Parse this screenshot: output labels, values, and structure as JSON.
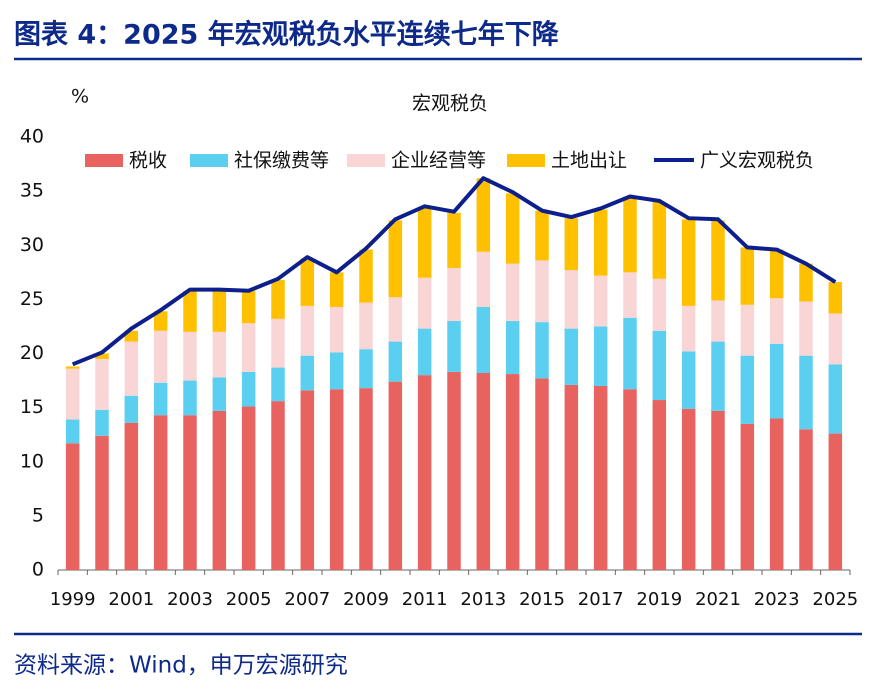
{
  "title": "图表 4：2025 年宏观税负水平连续七年下降",
  "source": "资料来源：Wind，申万宏源研究",
  "chart_data": {
    "type": "bar",
    "stacked": true,
    "subtitle": "宏观税负",
    "y_unit": "%",
    "categories": [
      "1999",
      null,
      "2001",
      null,
      "2003",
      null,
      "2005",
      null,
      "2007",
      null,
      "2009",
      null,
      "2011",
      null,
      "2013",
      null,
      "2015",
      null,
      "2017",
      null,
      "2019",
      null,
      "2021",
      null,
      "2023",
      null,
      "2025"
    ],
    "series": [
      {
        "name": "税收",
        "type": "bar",
        "color": "#e8625f",
        "values": [
          11.7,
          12.4,
          13.6,
          14.3,
          14.3,
          14.7,
          15.1,
          15.6,
          16.6,
          16.7,
          16.8,
          17.4,
          18.0,
          18.3,
          18.2,
          18.1,
          17.7,
          17.1,
          17.0,
          16.7,
          15.7,
          14.9,
          14.7,
          13.5,
          14.0,
          13.0,
          12.6
        ]
      },
      {
        "name": "社保缴费等",
        "type": "bar",
        "color": "#5bcff0",
        "values": [
          2.2,
          2.4,
          2.5,
          3.0,
          3.2,
          3.1,
          3.2,
          3.1,
          3.2,
          3.4,
          3.6,
          3.7,
          4.3,
          4.7,
          6.1,
          4.9,
          5.2,
          5.2,
          5.5,
          6.6,
          6.4,
          5.3,
          6.4,
          6.3,
          6.9,
          6.8,
          6.4
        ]
      },
      {
        "name": "企业经营等",
        "type": "bar",
        "color": "#f9d5d5",
        "values": [
          4.7,
          4.7,
          5.0,
          4.8,
          4.5,
          4.2,
          4.5,
          4.5,
          4.6,
          4.2,
          4.3,
          4.1,
          4.7,
          4.9,
          5.1,
          5.3,
          5.7,
          5.4,
          4.7,
          4.2,
          4.8,
          4.2,
          3.8,
          4.7,
          4.2,
          5.0,
          4.7
        ]
      },
      {
        "name": "土地出让",
        "type": "bar",
        "color": "#ffc000",
        "values": [
          0.2,
          0.5,
          1.0,
          1.8,
          3.8,
          3.8,
          3.0,
          3.6,
          4.4,
          3.2,
          4.9,
          7.1,
          6.5,
          5.1,
          6.8,
          6.5,
          4.6,
          4.8,
          6.1,
          7.0,
          7.1,
          8.0,
          7.4,
          5.3,
          4.5,
          3.5,
          2.9
        ]
      },
      {
        "name": "广义宏观税负",
        "type": "line",
        "color": "#0d1f8c",
        "values": [
          19.0,
          20.1,
          22.3,
          24.0,
          25.9,
          25.9,
          25.8,
          26.9,
          28.9,
          27.5,
          29.7,
          32.4,
          33.6,
          33.1,
          36.2,
          34.9,
          33.2,
          32.6,
          33.4,
          34.5,
          34.1,
          32.5,
          32.4,
          29.8,
          29.6,
          28.3,
          26.6
        ]
      }
    ],
    "ylim": [
      0,
      40
    ],
    "yticks": [
      0,
      5,
      10,
      15,
      20,
      25,
      30,
      35,
      40
    ],
    "grid": false
  }
}
